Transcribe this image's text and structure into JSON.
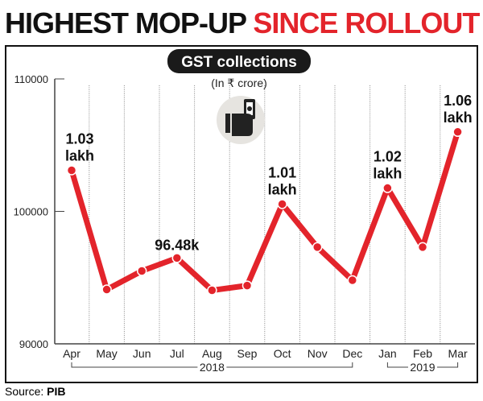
{
  "headline": {
    "part1": "HIGHEST MOP-UP",
    "part2": "SINCE ROLLOUT"
  },
  "source": {
    "label": "Source:",
    "value": "PIB"
  },
  "colors": {
    "line": "#e3242b",
    "accent": "#e3242b",
    "badge": "#1a1a1a"
  },
  "icon": "hand-holding-cash-icon",
  "chart_data": {
    "type": "line",
    "title": "GST collections",
    "subtitle": "(In ₹ crore)",
    "categories": [
      "Apr",
      "May",
      "Jun",
      "Jul",
      "Aug",
      "Sep",
      "Oct",
      "Nov",
      "Dec",
      "Jan",
      "Feb",
      "Mar"
    ],
    "values": [
      103100,
      94100,
      95500,
      96480,
      94040,
      94400,
      100550,
      97300,
      94800,
      101760,
      97300,
      106000
    ],
    "yticks": [
      "110000",
      "100000",
      "90000"
    ],
    "ylim": [
      90000,
      110000
    ],
    "year_groups": [
      {
        "label": "2018",
        "from": "Apr",
        "to": "Dec"
      },
      {
        "label": "2019",
        "from": "Jan",
        "to": "Mar"
      }
    ],
    "annotations": [
      {
        "month": "Apr",
        "line1": "1.03",
        "line2": "lakh"
      },
      {
        "month": "Jul",
        "line1": "96.48k",
        "line2": ""
      },
      {
        "month": "Oct",
        "line1": "1.01",
        "line2": "lakh"
      },
      {
        "month": "Jan",
        "line1": "1.02",
        "line2": "lakh"
      },
      {
        "month": "Mar",
        "line1": "1.06",
        "line2": "lakh"
      }
    ],
    "grid": "vertical dotted"
  }
}
